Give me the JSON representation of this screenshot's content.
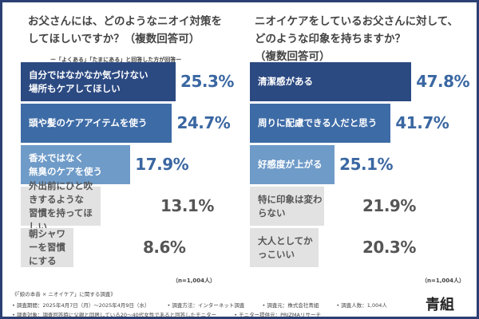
{
  "chart_data": [
    {
      "type": "bar",
      "orientation": "horizontal",
      "title": "お父さんには、どのようなニオイ対策を\nしてほしいですか？（複数回答可）",
      "subtitle": "ー「よくある」「たまにある」と回答した方が回答ー",
      "categories": [
        "自分ではなかなか気づけない\n場所もケアしてほしい",
        "頭や髪のケアアイテムを使う",
        "香水ではなく\n無臭のケアを使う",
        "外出前にひと吹きするような\n習慣を持ってほしい",
        "朝シャワーを習慣にする"
      ],
      "values": [
        25.3,
        24.7,
        17.9,
        13.1,
        8.6
      ],
      "value_labels": [
        "25.3%",
        "24.7%",
        "17.9%",
        "13.1%",
        "8.6%"
      ],
      "colors": [
        "#2c4a82",
        "#3d6ba6",
        "#6f9bc8",
        "#e2e2e2",
        "#e2e2e2"
      ],
      "note": "（n=1,004人）"
    },
    {
      "type": "bar",
      "orientation": "horizontal",
      "title": "ニオイケアをしているお父さんに対して、\nどのような印象を持ちますか？\n（複数回答可）",
      "categories": [
        "清潔感がある",
        "周りに配慮できる人だと思う",
        "好感度が上がる",
        "特に印象は変わらない",
        "大人としてかっこいい"
      ],
      "values": [
        47.8,
        41.7,
        25.1,
        21.9,
        20.3
      ],
      "value_labels": [
        "47.8%",
        "41.7%",
        "25.1%",
        "21.9%",
        "20.3%"
      ],
      "colors": [
        "#2c4a82",
        "#3d6ba6",
        "#6f9bc8",
        "#e2e2e2",
        "#e2e2e2"
      ],
      "note": "（n=1,004人）"
    }
  ],
  "footer": {
    "survey_title": "《「娘の本音 × ニオイケア」に関する調査》",
    "line1": [
      "• 調査期間：2025年4月7日（月）〜2025年4月9日（水）",
      "• 調査方法：インターネット調査",
      "• 調査元：株式会社青組",
      "• 調査人数：1,004人"
    ],
    "line2": [
      "• 調査対象：調査回答時に父親と同居している20〜40代女性であると回答したモニター",
      "• モニター提供元：PRIZMAリサーチ"
    ],
    "logo": "青組"
  },
  "text_colors": {
    "blue": "#3a67a2",
    "gray": "#555555"
  }
}
